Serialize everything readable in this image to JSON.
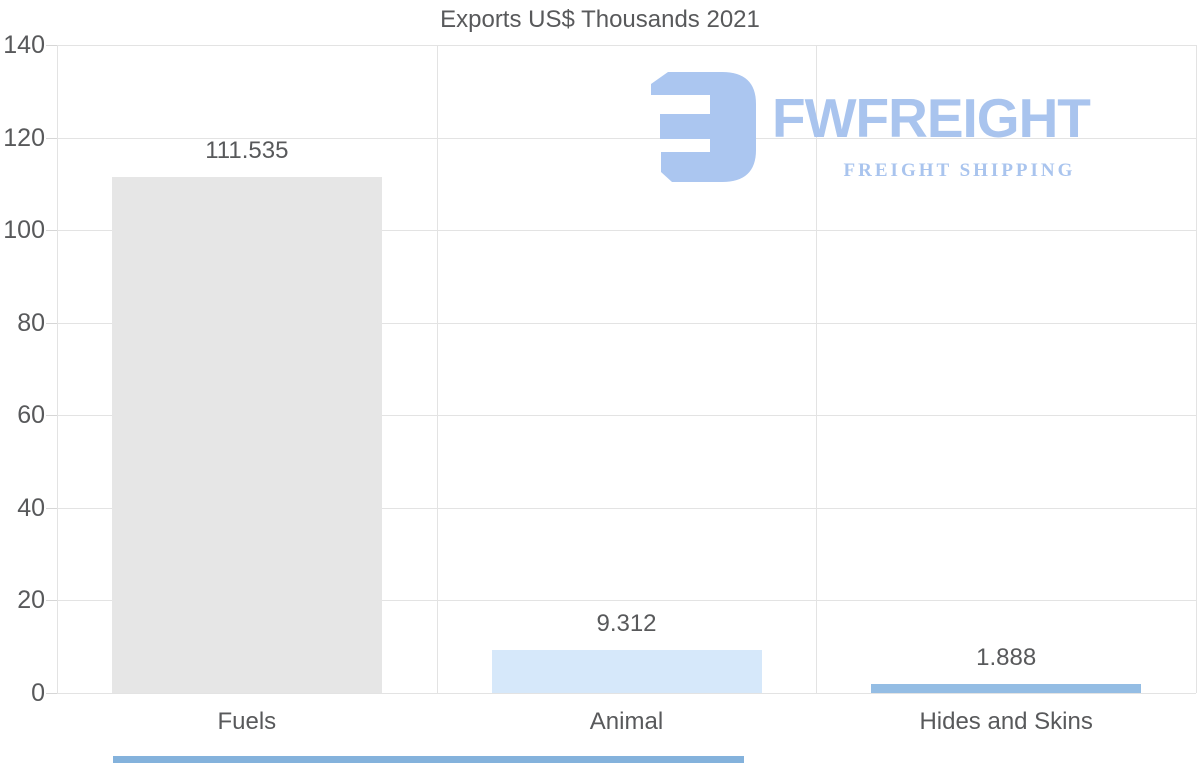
{
  "chart_data": {
    "type": "bar",
    "title": "Exports US$ Thousands 2021",
    "categories": [
      "Fuels",
      "Animal",
      "Hides and Skins"
    ],
    "values": [
      111.535,
      9.312,
      1.888
    ],
    "value_labels": [
      "111.535",
      "9.312",
      "1.888"
    ],
    "bar_colors": [
      "#e6e6e6",
      "#d6e8fa",
      "#94bde4"
    ],
    "ylim": [
      0,
      140
    ],
    "yticks": [
      0,
      20,
      40,
      60,
      80,
      100,
      120,
      140
    ],
    "xlabel": "",
    "ylabel": "",
    "grid": true,
    "legend": "none"
  },
  "watermark": {
    "brand": "FWFREIGHT",
    "tagline": "FREIGHT SHIPPING",
    "logo_icon": "fwfreight-logo-mark",
    "color": "#a9c4ee"
  },
  "colors": {
    "text": "#58595b",
    "gridline": "#e3e3e3",
    "tick_mark": "#d6d6d6",
    "accent_strip": "#84b2dc",
    "background": "#ffffff"
  }
}
